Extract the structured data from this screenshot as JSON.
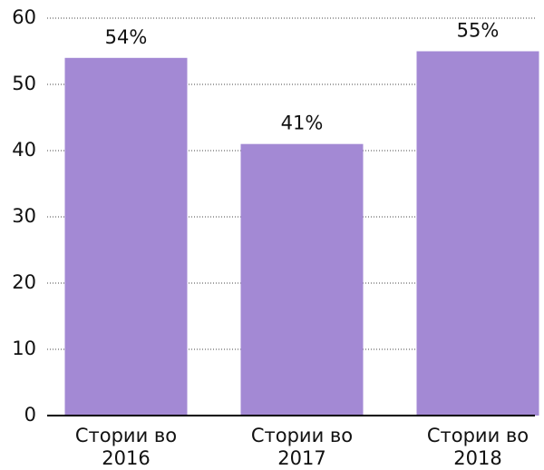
{
  "chart_data": {
    "type": "bar",
    "categories": [
      "Стории во 2016",
      "Стории во 2017",
      "Стории во 2018"
    ],
    "values": [
      54,
      41,
      55
    ],
    "value_labels": [
      "54%",
      "41%",
      "55%"
    ],
    "color": "#a389d4",
    "ylim": [
      0,
      60
    ],
    "yticks": [
      0,
      10,
      20,
      30,
      40,
      50,
      60
    ],
    "grid": true
  }
}
